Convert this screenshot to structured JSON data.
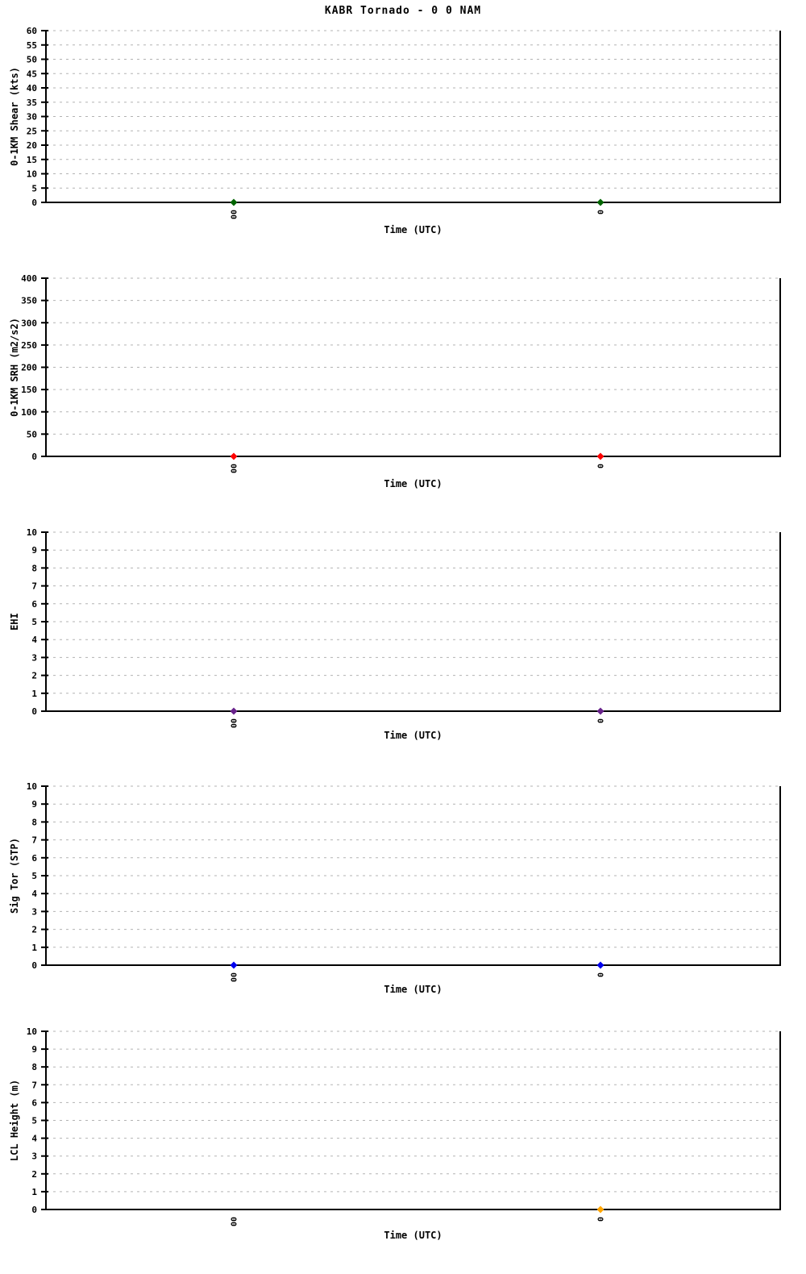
{
  "title": "KABR Tornado - 0 0 NAM",
  "chart_data": [
    {
      "type": "scatter",
      "ylabel": "0-1KM Shear (kts)",
      "xlabel": "Time (UTC)",
      "ylim": [
        0,
        60
      ],
      "ytick_step": 5,
      "grid": "horizontal-dashed",
      "x_categories": [
        "00",
        "0"
      ],
      "series": [
        {
          "name": "0-1KM Shear",
          "marker": "diamond",
          "color": "#006400",
          "values": [
            0,
            0
          ]
        }
      ]
    },
    {
      "type": "scatter",
      "ylabel": "0-1KM SRH (m2/s2)",
      "xlabel": "Time (UTC)",
      "ylim": [
        0,
        400
      ],
      "ytick_step": 50,
      "grid": "horizontal-dashed",
      "x_categories": [
        "00",
        "0"
      ],
      "series": [
        {
          "name": "0-1KM SRH",
          "marker": "diamond",
          "color": "#ff0000",
          "values": [
            0,
            0
          ]
        }
      ]
    },
    {
      "type": "scatter",
      "ylabel": "EHI",
      "xlabel": "Time (UTC)",
      "ylim": [
        0,
        10
      ],
      "ytick_step": 1,
      "grid": "horizontal-dashed",
      "x_categories": [
        "00",
        "0"
      ],
      "series": [
        {
          "name": "EHI",
          "marker": "diamond",
          "color": "#68228b",
          "values": [
            0,
            0
          ]
        }
      ]
    },
    {
      "type": "scatter",
      "ylabel": "Sig Tor (STP)",
      "xlabel": "Time (UTC)",
      "ylim": [
        0,
        10
      ],
      "ytick_step": 1,
      "grid": "horizontal-dashed",
      "x_categories": [
        "00",
        "0"
      ],
      "series": [
        {
          "name": "Sig Tor",
          "marker": "diamond",
          "color": "#0000ee",
          "values": [
            0,
            0
          ]
        }
      ]
    },
    {
      "type": "scatter",
      "ylabel": "LCL Height (m)",
      "xlabel": "Time (UTC)",
      "ylim": [
        0,
        10
      ],
      "ytick_step": 1,
      "grid": "horizontal-dashed",
      "x_categories": [
        "00",
        "0"
      ],
      "series": [
        {
          "name": "LCL Height",
          "marker": "diamond",
          "color": "#ffa500",
          "values": [
            null,
            0
          ]
        }
      ]
    }
  ]
}
